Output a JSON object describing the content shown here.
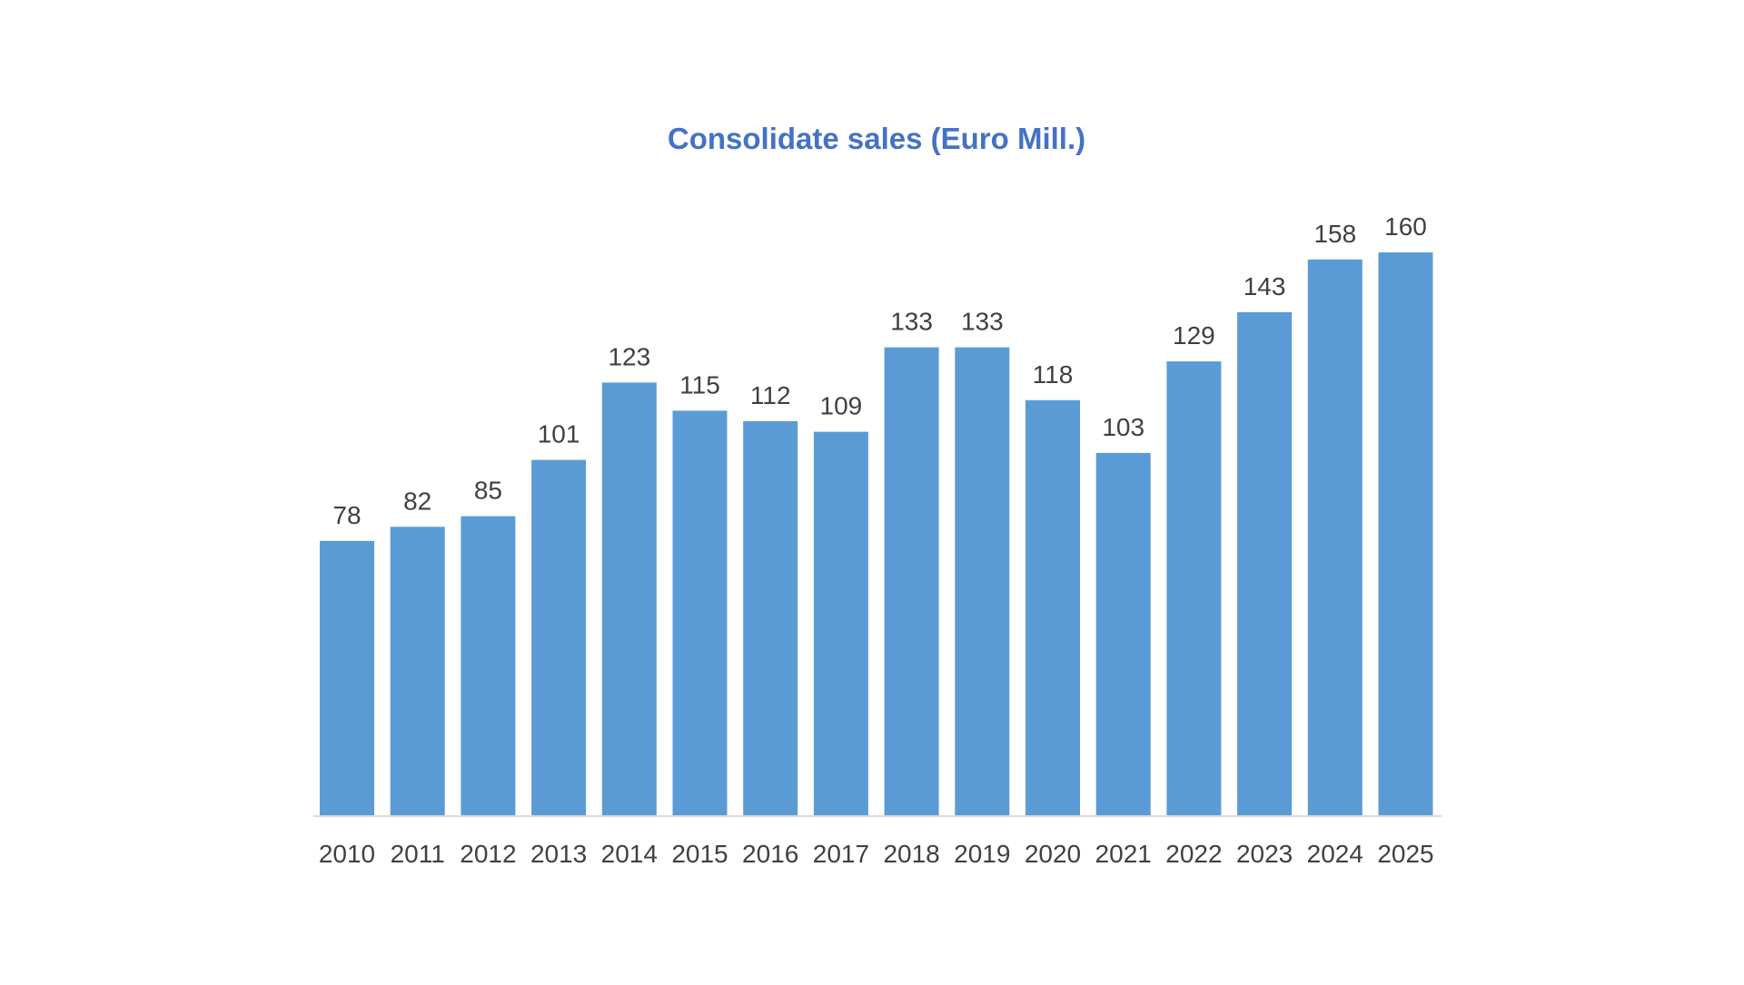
{
  "chart_data": {
    "type": "bar",
    "title": "Consolidate sales (Euro Mill.)",
    "xlabel": "",
    "ylabel": "",
    "categories": [
      "2010",
      "2011",
      "2012",
      "2013",
      "2014",
      "2015",
      "2016",
      "2017",
      "2018",
      "2019",
      "2020",
      "2021",
      "2022",
      "2023",
      "2024",
      "2025"
    ],
    "values": [
      78,
      82,
      85,
      101,
      123,
      115,
      112,
      109,
      133,
      133,
      118,
      103,
      129,
      143,
      158,
      160
    ],
    "ylim": [
      0,
      160
    ],
    "grid": false,
    "legend": "none",
    "data_labels": true
  },
  "colors": {
    "bar": "#5b9bd5",
    "title": "#4472c4",
    "text": "#404040",
    "axis": "#d9d9d9"
  }
}
